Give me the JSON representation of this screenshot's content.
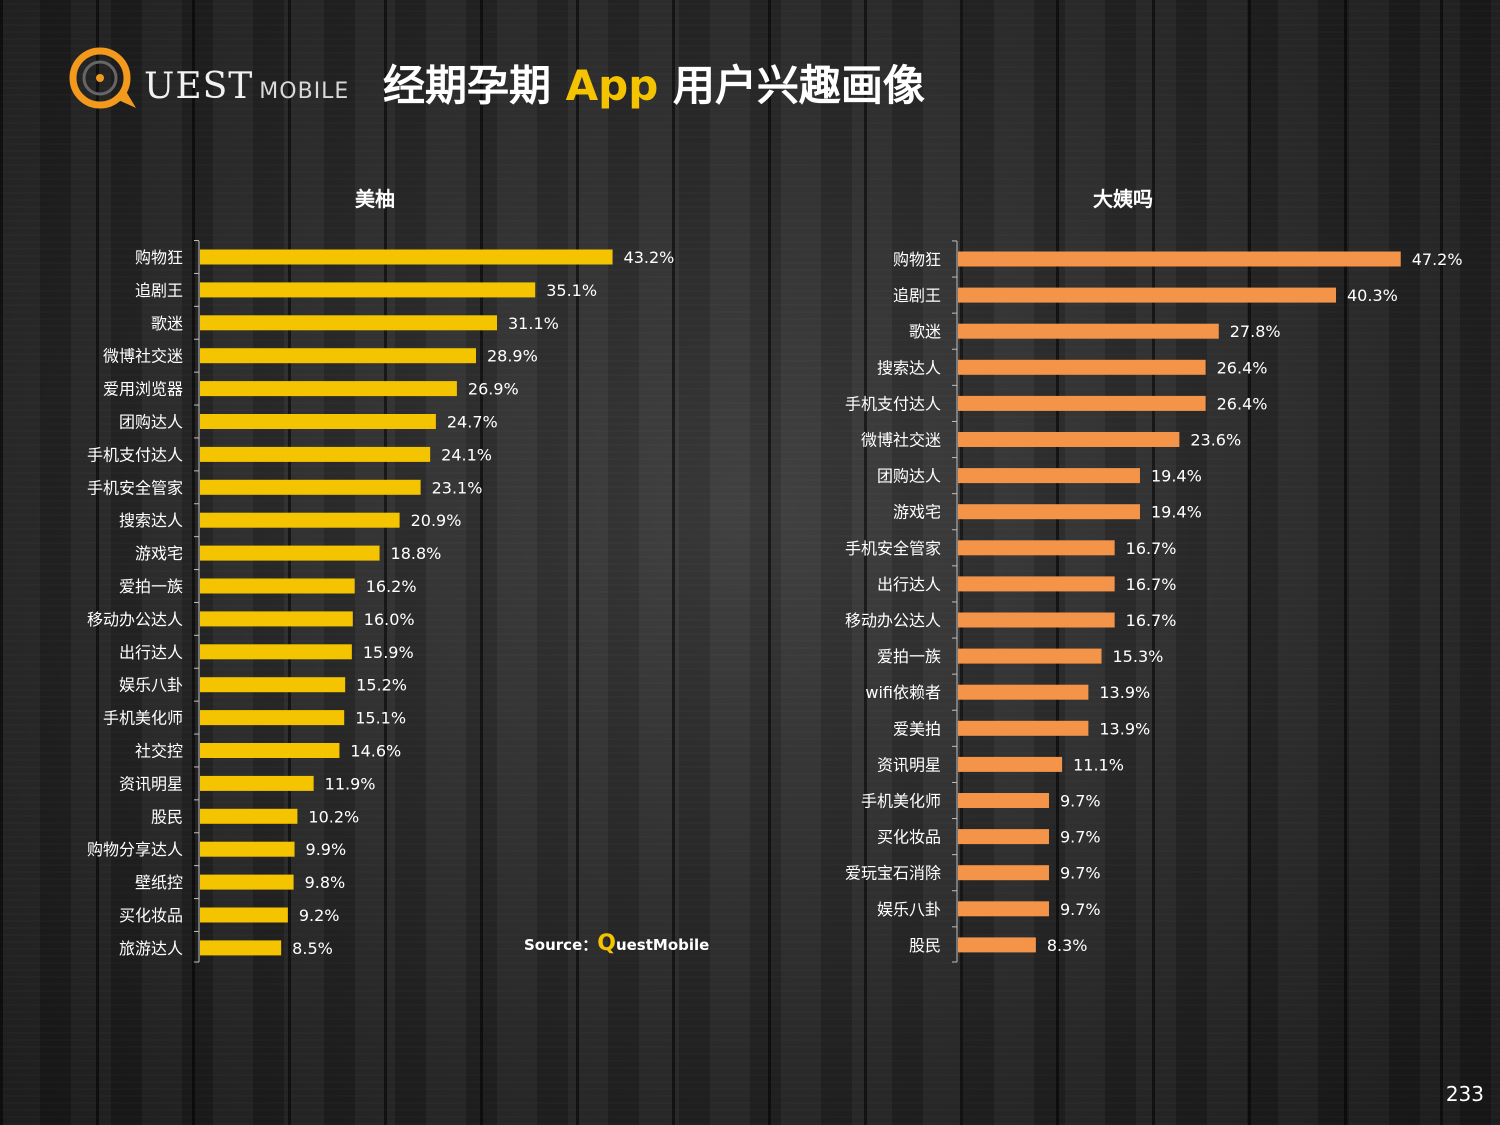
{
  "header": {
    "logo_text": "UEST",
    "logo_sub": "MOBILE",
    "title_part1": "经期孕期",
    "title_accent": "App",
    "title_part2": "用户兴趣画像"
  },
  "source": {
    "prefix": "Source：",
    "q": "Q",
    "brand": "uestMobile"
  },
  "page_number": "233",
  "chart_data": [
    {
      "type": "bar",
      "orientation": "horizontal",
      "title": "美柚",
      "color": "#f5c400",
      "xlim": [
        0,
        50
      ],
      "categories": [
        "购物狂",
        "追剧王",
        "歌迷",
        "微博社交迷",
        "爱用浏览器",
        "团购达人",
        "手机支付达人",
        "手机安全管家",
        "搜索达人",
        "游戏宅",
        "爱拍一族",
        "移动办公达人",
        "出行达人",
        "娱乐八卦",
        "手机美化师",
        "社交控",
        "资讯明星",
        "股民",
        "购物分享达人",
        "壁纸控",
        "买化妆品",
        "旅游达人"
      ],
      "values": [
        43.2,
        35.1,
        31.1,
        28.9,
        26.9,
        24.7,
        24.1,
        23.1,
        20.9,
        18.8,
        16.2,
        16.0,
        15.9,
        15.2,
        15.1,
        14.6,
        11.9,
        10.2,
        9.9,
        9.8,
        9.2,
        8.5
      ],
      "labels": [
        "43.2%",
        "35.1%",
        "31.1%",
        "28.9%",
        "26.9%",
        "24.7%",
        "24.1%",
        "23.1%",
        "20.9%",
        "18.8%",
        "16.2%",
        "16.0%",
        "15.9%",
        "15.2%",
        "15.1%",
        "14.6%",
        "11.9%",
        "10.2%",
        "9.9%",
        "9.8%",
        "9.2%",
        "8.5%"
      ]
    },
    {
      "type": "bar",
      "orientation": "horizontal",
      "title": "大姨吗",
      "color": "#f39449",
      "xlim": [
        0,
        50
      ],
      "categories": [
        "购物狂",
        "追剧王",
        "歌迷",
        "搜索达人",
        "手机支付达人",
        "微博社交迷",
        "团购达人",
        "游戏宅",
        "手机安全管家",
        "出行达人",
        "移动办公达人",
        "爱拍一族",
        "wifi依赖者",
        "爱美拍",
        "资讯明星",
        "手机美化师",
        "买化妆品",
        "爱玩宝石消除",
        "娱乐八卦",
        "股民"
      ],
      "values": [
        47.2,
        40.3,
        27.8,
        26.4,
        26.4,
        23.6,
        19.4,
        19.4,
        16.7,
        16.7,
        16.7,
        15.3,
        13.9,
        13.9,
        11.1,
        9.7,
        9.7,
        9.7,
        9.7,
        8.3
      ],
      "labels": [
        "47.2%",
        "40.3%",
        "27.8%",
        "26.4%",
        "26.4%",
        "23.6%",
        "19.4%",
        "19.4%",
        "16.7%",
        "16.7%",
        "16.7%",
        "15.3%",
        "13.9%",
        "13.9%",
        "11.1%",
        "9.7%",
        "9.7%",
        "9.7%",
        "9.7%",
        "8.3%"
      ]
    }
  ]
}
